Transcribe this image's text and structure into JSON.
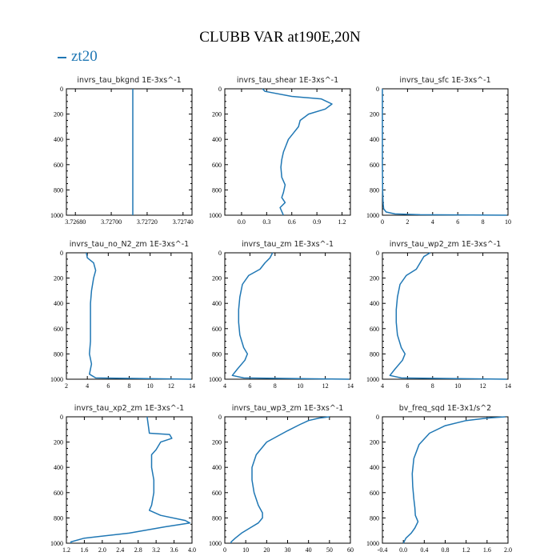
{
  "title": "CLUBB VAR at190E,20N",
  "legend": {
    "label": "zt20",
    "color": "#1f77b4"
  },
  "chart_data": [
    {
      "type": "line",
      "title": "invrs_tau_bkgnd   1E-3xs^-1",
      "xlim": [
        3.72675,
        3.72745
      ],
      "ylim": [
        1000,
        0
      ],
      "xticks": [
        "3.72680",
        "3.72700",
        "3.72720",
        "3.72740"
      ],
      "yticks": [
        "0",
        "200",
        "400",
        "600",
        "800",
        "1000"
      ],
      "series": [
        {
          "name": "zt20",
          "x": [
            3.72712,
            3.72712
          ],
          "y": [
            0,
            1000
          ]
        }
      ]
    },
    {
      "type": "line",
      "title": "invrs_tau_shear   1E-3xs^-1",
      "xlim": [
        -0.2,
        1.3
      ],
      "ylim": [
        1000,
        0
      ],
      "xticks": [
        "0.0",
        "0.3",
        "0.6",
        "0.9",
        "1.2"
      ],
      "yticks": [
        "0",
        "200",
        "400",
        "600",
        "800",
        "1000"
      ],
      "series": [
        {
          "name": "zt20",
          "x": [
            0.25,
            0.28,
            0.6,
            0.95,
            1.08,
            1.0,
            0.8,
            0.7,
            0.68,
            0.62,
            0.56,
            0.53,
            0.5,
            0.48,
            0.47,
            0.48,
            0.52,
            0.5,
            0.48,
            0.52,
            0.46,
            0.48,
            0.5
          ],
          "y": [
            0,
            20,
            60,
            80,
            120,
            160,
            200,
            250,
            300,
            350,
            400,
            450,
            500,
            560,
            620,
            700,
            760,
            820,
            860,
            900,
            940,
            970,
            1000
          ]
        }
      ]
    },
    {
      "type": "line",
      "title": "invrs_tau_sfc   1E-3xs^-1",
      "xlim": [
        0,
        10
      ],
      "ylim": [
        1000,
        0
      ],
      "xticks": [
        "0",
        "2",
        "4",
        "6",
        "8",
        "10"
      ],
      "yticks": [
        "0",
        "200",
        "400",
        "600",
        "800",
        "1000"
      ],
      "series": [
        {
          "name": "zt20",
          "x": [
            0.0,
            0.0,
            0.02,
            0.05,
            0.1,
            0.3,
            1.0,
            3.0,
            9.9
          ],
          "y": [
            0,
            600,
            800,
            900,
            950,
            975,
            990,
            996,
            1000
          ]
        }
      ]
    },
    {
      "type": "line",
      "title": "invrs_tau_no_N2_zm   1E-3xs^-1",
      "xlim": [
        2,
        14
      ],
      "ylim": [
        1000,
        0
      ],
      "xticks": [
        "2",
        "4",
        "6",
        "8",
        "10",
        "12",
        "14"
      ],
      "yticks": [
        "0",
        "200",
        "400",
        "600",
        "800",
        "1000"
      ],
      "series": [
        {
          "name": "zt20",
          "x": [
            3.9,
            4.0,
            4.6,
            4.8,
            4.6,
            4.4,
            4.3,
            4.3,
            4.3,
            4.3,
            4.2,
            4.4,
            4.2,
            4.8,
            13.9
          ],
          "y": [
            0,
            40,
            80,
            140,
            200,
            300,
            400,
            500,
            600,
            700,
            800,
            880,
            960,
            990,
            1000
          ]
        }
      ]
    },
    {
      "type": "line",
      "title": "invrs_tau_zm   1E-3xs^-1",
      "xlim": [
        4,
        14
      ],
      "ylim": [
        1000,
        0
      ],
      "xticks": [
        "4",
        "6",
        "8",
        "10",
        "12",
        "14"
      ],
      "yticks": [
        "0",
        "200",
        "400",
        "600",
        "800",
        "1000"
      ],
      "series": [
        {
          "name": "zt20",
          "x": [
            7.8,
            7.6,
            7.2,
            6.8,
            5.9,
            5.4,
            5.2,
            5.1,
            5.1,
            5.2,
            5.5,
            5.8,
            5.6,
            5.0,
            4.6,
            5.5,
            13.9
          ],
          "y": [
            0,
            40,
            80,
            130,
            180,
            250,
            350,
            450,
            550,
            650,
            750,
            800,
            850,
            920,
            970,
            990,
            1000
          ]
        }
      ]
    },
    {
      "type": "line",
      "title": "invrs_tau_wp2_zm   1E-3xs^-1",
      "xlim": [
        4,
        14
      ],
      "ylim": [
        1000,
        0
      ],
      "xticks": [
        "4",
        "6",
        "8",
        "10",
        "12",
        "14"
      ],
      "yticks": [
        "0",
        "200",
        "400",
        "600",
        "800",
        "1000"
      ],
      "series": [
        {
          "name": "zt20",
          "x": [
            7.8,
            7.3,
            7.0,
            6.7,
            5.9,
            5.4,
            5.2,
            5.1,
            5.1,
            5.2,
            5.5,
            5.8,
            5.6,
            5.0,
            4.6,
            5.5,
            13.9
          ],
          "y": [
            0,
            30,
            80,
            130,
            180,
            250,
            350,
            450,
            550,
            650,
            750,
            800,
            850,
            920,
            970,
            990,
            1000
          ]
        }
      ]
    },
    {
      "type": "line",
      "title": "invrs_tau_xp2_zm   1E-3xs^-1",
      "xlim": [
        1.2,
        4.0
      ],
      "ylim": [
        1000,
        0
      ],
      "xticks": [
        "1.2",
        "1.6",
        "2.0",
        "2.4",
        "2.8",
        "3.2",
        "3.6",
        "4.0"
      ],
      "yticks": [
        "0",
        "200",
        "400",
        "600",
        "800",
        "1000"
      ],
      "series": [
        {
          "name": "zt20",
          "x": [
            3.0,
            3.05,
            3.5,
            3.55,
            3.3,
            3.2,
            3.1,
            3.1,
            3.15,
            3.15,
            3.1,
            3.05,
            3.3,
            3.85,
            3.95,
            3.4,
            2.6,
            1.6,
            1.3,
            1.3
          ],
          "y": [
            0,
            130,
            140,
            170,
            200,
            260,
            300,
            400,
            500,
            600,
            700,
            740,
            780,
            820,
            840,
            870,
            920,
            960,
            990,
            1000
          ]
        }
      ]
    },
    {
      "type": "line",
      "title": "invrs_tau_wp3_zm   1E-3xs^-1",
      "xlim": [
        0,
        60
      ],
      "ylim": [
        1000,
        0
      ],
      "xticks": [
        "0",
        "10",
        "20",
        "30",
        "40",
        "50",
        "60"
      ],
      "yticks": [
        "0",
        "200",
        "400",
        "600",
        "800",
        "1000"
      ],
      "series": [
        {
          "name": "zt20",
          "x": [
            50,
            45,
            40,
            36,
            30,
            20,
            15,
            13,
            13,
            14,
            16,
            18,
            18,
            16,
            12,
            8,
            5,
            3,
            3
          ],
          "y": [
            0,
            10,
            30,
            60,
            110,
            200,
            300,
            400,
            500,
            600,
            700,
            760,
            800,
            840,
            880,
            920,
            960,
            990,
            1000
          ]
        }
      ]
    },
    {
      "type": "line",
      "title": "bv_freq_sqd   1E-3x1/s^2",
      "xlim": [
        -0.4,
        2.0
      ],
      "ylim": [
        1000,
        0
      ],
      "xticks": [
        "-0.4",
        "0.0",
        "0.4",
        "0.8",
        "1.2",
        "1.6",
        "2.0"
      ],
      "yticks": [
        "0",
        "200",
        "400",
        "600",
        "800",
        "1000"
      ],
      "series": [
        {
          "name": "zt20",
          "x": [
            1.95,
            1.6,
            1.2,
            0.8,
            0.5,
            0.3,
            0.2,
            0.17,
            0.18,
            0.2,
            0.22,
            0.23,
            0.28,
            0.22,
            0.15,
            0.05,
            0.0
          ],
          "y": [
            0,
            10,
            30,
            70,
            130,
            220,
            330,
            450,
            550,
            650,
            720,
            780,
            830,
            880,
            920,
            960,
            1000
          ]
        }
      ]
    }
  ]
}
